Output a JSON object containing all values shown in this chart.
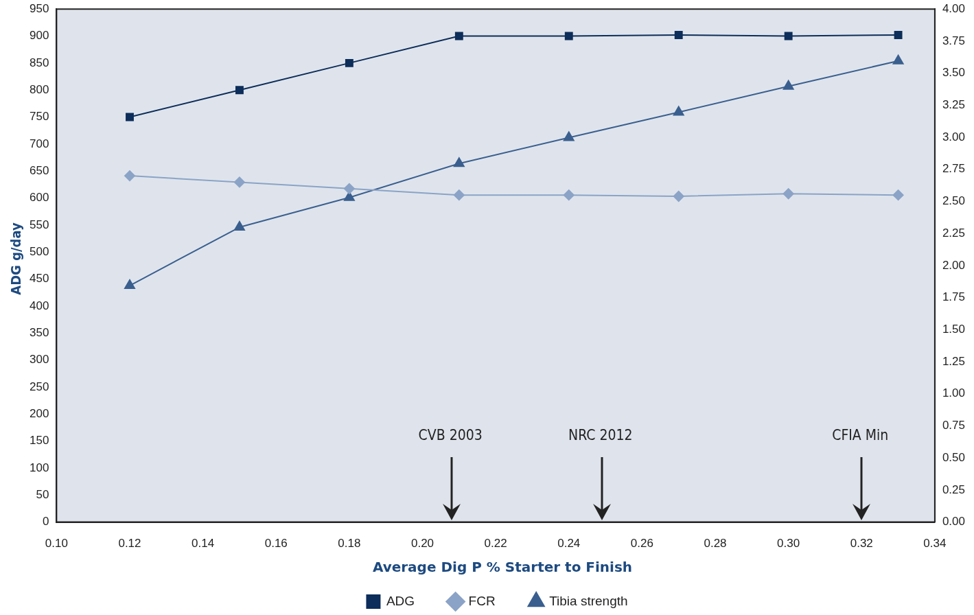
{
  "chart_data": {
    "type": "line",
    "xlabel": "Average Dig P % Starter to Finish",
    "ylabel": "ADG g/day",
    "x": [
      0.12,
      0.15,
      0.18,
      0.21,
      0.24,
      0.27,
      0.3,
      0.33
    ],
    "series": [
      {
        "name": "ADG",
        "color": "#0d2d5a",
        "marker": "square",
        "values": [
          750,
          800,
          850,
          900,
          900,
          902,
          900,
          902
        ]
      },
      {
        "name": "FCR",
        "color": "#8ba3c7",
        "marker": "diamond",
        "axis": "y2",
        "values": [
          2.7,
          2.65,
          2.6,
          2.55,
          2.55,
          2.54,
          2.56,
          2.55
        ]
      },
      {
        "name": "Tibia strength",
        "color": "#3a5f8f",
        "marker": "triangle",
        "values": [
          438,
          546,
          601,
          664,
          712,
          759,
          807,
          854
        ]
      }
    ],
    "xlim": [
      0.1,
      0.34
    ],
    "xticks": [
      {
        "value": 0.1,
        "label": "0.10"
      },
      {
        "value": 0.12,
        "label": "0.12"
      },
      {
        "value": 0.14,
        "label": "0.14"
      },
      {
        "value": 0.16,
        "label": "0.16"
      },
      {
        "value": 0.18,
        "label": "0.18"
      },
      {
        "value": 0.2,
        "label": "0.20"
      },
      {
        "value": 0.22,
        "label": "0.22"
      },
      {
        "value": 0.24,
        "label": "0.24"
      },
      {
        "value": 0.26,
        "label": "0.26"
      },
      {
        "value": 0.28,
        "label": "0.28"
      },
      {
        "value": 0.3,
        "label": "0.30"
      },
      {
        "value": 0.32,
        "label": "0.32"
      },
      {
        "value": 0.34,
        "label": "0.34"
      }
    ],
    "ylim": [
      0,
      950
    ],
    "yticks": [
      0,
      50,
      100,
      150,
      200,
      250,
      300,
      350,
      400,
      450,
      500,
      550,
      600,
      650,
      700,
      750,
      800,
      850,
      900,
      950
    ],
    "y2lim": [
      0,
      4
    ],
    "y2ticks": [
      {
        "value": 0,
        "label": "0.00"
      },
      {
        "value": 0.25,
        "label": "0.25"
      },
      {
        "value": 0.5,
        "label": "0.50"
      },
      {
        "value": 0.75,
        "label": "0.75"
      },
      {
        "value": 1,
        "label": "1.00"
      },
      {
        "value": 1.25,
        "label": "1.25"
      },
      {
        "value": 1.5,
        "label": "1.50"
      },
      {
        "value": 1.75,
        "label": "1.75"
      },
      {
        "value": 2,
        "label": "2.00"
      },
      {
        "value": 2.25,
        "label": "2.25"
      },
      {
        "value": 2.5,
        "label": "2.50"
      },
      {
        "value": 2.75,
        "label": "2.75"
      },
      {
        "value": 3,
        "label": "3.00"
      },
      {
        "value": 3.25,
        "label": "3.25"
      },
      {
        "value": 3.5,
        "label": "3.50"
      },
      {
        "value": 3.75,
        "label": "3.75"
      },
      {
        "value": 4,
        "label": "4.00"
      }
    ],
    "ref_lines": [
      {
        "axis": "x",
        "value": 0.208,
        "label": "CVB 2003",
        "color": "#222222"
      },
      {
        "axis": "x",
        "value": 0.249,
        "label": "NRC 2012",
        "color": "#222222"
      },
      {
        "axis": "x",
        "value": 0.32,
        "label": "CFIA Min",
        "color": "#222222"
      }
    ],
    "grid": false,
    "legend": "bottom",
    "line_style": "solid"
  }
}
